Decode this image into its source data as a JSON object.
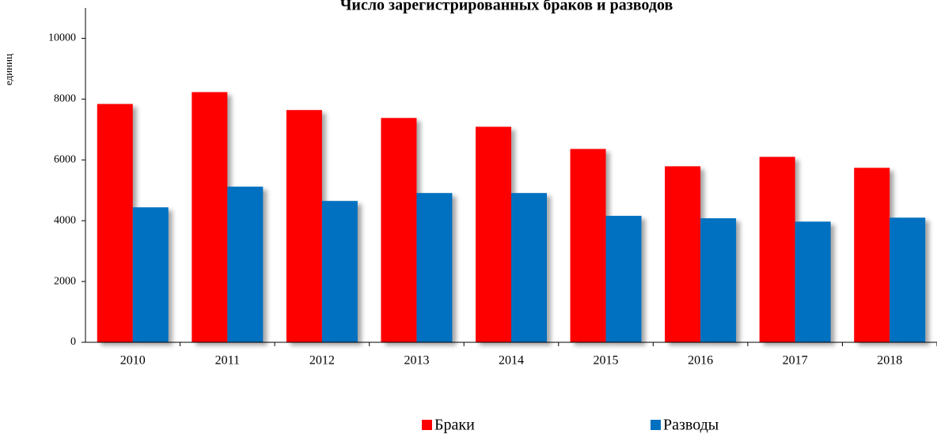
{
  "chart_data": {
    "type": "bar",
    "title": "Число зарегистрированных браков и разводов",
    "y_label": "единиц",
    "categories": [
      "2010",
      "2011",
      "2012",
      "2013",
      "2014",
      "2015",
      "2016",
      "2017",
      "2018"
    ],
    "series": [
      {
        "name": "Браки",
        "color": "#ff0000",
        "values": [
          7840,
          8230,
          7640,
          7380,
          7090,
          6360,
          5790,
          6100,
          5740
        ]
      },
      {
        "name": "Разводы",
        "color": "#0070c0",
        "values": [
          4440,
          5120,
          4650,
          4910,
          4910,
          4160,
          4080,
          3970,
          4100
        ]
      }
    ],
    "ylim": [
      0,
      11000
    ],
    "yticks": [
      0,
      2000,
      4000,
      6000,
      8000,
      10000
    ]
  }
}
